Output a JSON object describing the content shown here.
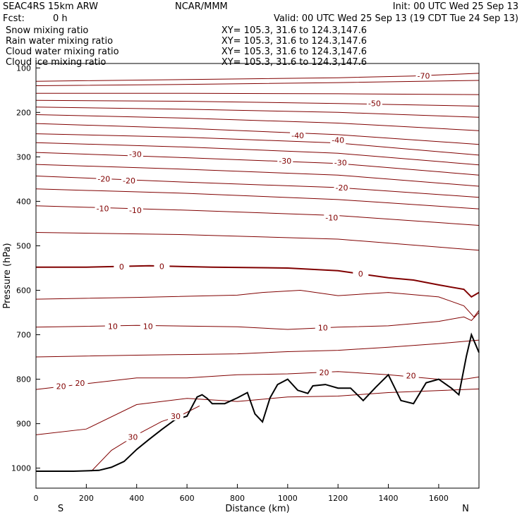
{
  "header": {
    "model": "SEAC4RS 15km ARW",
    "org": "NCAR/MMM",
    "init": "Init: 00 UTC Wed 25 Sep 13",
    "fcst_label": "Fcst:",
    "fcst_value": "0 h",
    "valid": "Valid: 00 UTC Wed 25 Sep 13 (19 CDT Tue 24 Sep 13)"
  },
  "fields": [
    {
      "name": "Snow mixing ratio",
      "xy": "XY= 105.3, 31.6 to 124.3,147.6",
      "color": "#000000"
    },
    {
      "name": "Rain water mixing ratio",
      "xy": "XY= 105.3, 31.6 to 124.3,147.6",
      "color": "#ff0000"
    },
    {
      "name": "Cloud water mixing ratio",
      "xy": "XY= 105.3, 31.6 to 124.3,147.6",
      "color": "#0000ff"
    },
    {
      "name": "Cloud ice mixing ratio",
      "xy": "XY= 105.3, 31.6 to 124.3,147.6",
      "color": "#000000"
    }
  ],
  "axes": {
    "ylabel": "Pressure (hPa)",
    "xlabel": "Distance (km)",
    "left_end": "S",
    "right_end": "N"
  },
  "colors": {
    "isotherm": "#800000",
    "terrain": "#000000"
  },
  "chart_data": {
    "type": "line",
    "xlim": [
      0,
      1760
    ],
    "ylim": [
      1045,
      90
    ],
    "x_ticks": [
      0,
      200,
      400,
      600,
      800,
      1000,
      1200,
      1400,
      1600
    ],
    "x_tick_labels": [
      "0",
      "200",
      "400",
      "600",
      "800",
      "1000",
      "1200",
      "1400",
      "1600"
    ],
    "y_ticks": [
      100,
      200,
      300,
      400,
      500,
      600,
      700,
      800,
      900,
      1000
    ],
    "y_tick_labels": [
      "100",
      "200",
      "300",
      "400",
      "500",
      "600",
      "700",
      "800",
      "900",
      "1000"
    ],
    "contour_interval_c": 5,
    "isotherms": [
      {
        "t": -75,
        "x": [
          0,
          600,
          1200,
          1500,
          1760
        ],
        "p": [
          130,
          126,
          122,
          118,
          112
        ]
      },
      {
        "t": -70,
        "x": [
          0,
          600,
          1200,
          1760
        ],
        "p": [
          140,
          137,
          133,
          128
        ]
      },
      {
        "t": -65,
        "x": [
          0,
          600,
          1200,
          1760
        ],
        "p": [
          157,
          157,
          158,
          160
        ]
      },
      {
        "t": -60,
        "x": [
          0,
          600,
          1200,
          1760
        ],
        "p": [
          173,
          175,
          180,
          186
        ]
      },
      {
        "t": -55,
        "x": [
          0,
          600,
          1200,
          1760
        ],
        "p": [
          188,
          193,
          200,
          211
        ]
      },
      {
        "t": -50,
        "x": [
          0,
          600,
          1200,
          1760
        ],
        "p": [
          205,
          213,
          224,
          241
        ]
      },
      {
        "t": -45,
        "x": [
          0,
          600,
          1200,
          1760
        ],
        "p": [
          225,
          236,
          250,
          272
        ]
      },
      {
        "t": -40,
        "x": [
          0,
          600,
          1200,
          1760
        ],
        "p": [
          248,
          256,
          269,
          296
        ]
      },
      {
        "t": -35,
        "x": [
          0,
          600,
          1200,
          1760
        ],
        "p": [
          268,
          278,
          292,
          318
        ]
      },
      {
        "t": -30,
        "x": [
          0,
          600,
          1200,
          1760
        ],
        "p": [
          290,
          302,
          315,
          341
        ]
      },
      {
        "t": -25,
        "x": [
          0,
          600,
          1200,
          1760
        ],
        "p": [
          317,
          328,
          341,
          366
        ]
      },
      {
        "t": -20,
        "x": [
          0,
          600,
          1200,
          1760
        ],
        "p": [
          343,
          357,
          369,
          391
        ]
      },
      {
        "t": -15,
        "x": [
          0,
          600,
          1200,
          1760
        ],
        "p": [
          372,
          382,
          396,
          417
        ]
      },
      {
        "t": -10,
        "x": [
          0,
          600,
          1200,
          1760
        ],
        "p": [
          410,
          420,
          432,
          454
        ]
      },
      {
        "t": -5,
        "x": [
          0,
          600,
          1200,
          1760
        ],
        "p": [
          470,
          475,
          485,
          510
        ]
      },
      {
        "t": 0,
        "x": [
          0,
          200,
          450,
          700,
          1000,
          1200,
          1400,
          1500,
          1600,
          1700,
          1730,
          1760
        ],
        "p": [
          548,
          548,
          545,
          548,
          550,
          556,
          572,
          577,
          588,
          598,
          615,
          605
        ]
      },
      {
        "t": 5,
        "x": [
          0,
          400,
          800,
          900,
          1050,
          1200,
          1400,
          1600,
          1700,
          1740,
          1760
        ],
        "p": [
          620,
          616,
          611,
          605,
          600,
          612,
          605,
          615,
          635,
          660,
          645
        ]
      },
      {
        "t": 10,
        "x": [
          0,
          400,
          800,
          1000,
          1200,
          1400,
          1600,
          1700,
          1730,
          1760
        ],
        "p": [
          683,
          679,
          682,
          688,
          683,
          680,
          670,
          660,
          668,
          650
        ]
      },
      {
        "t": 15,
        "x": [
          0,
          400,
          800,
          1000,
          1200,
          1400,
          1600,
          1760
        ],
        "p": [
          750,
          746,
          743,
          738,
          735,
          728,
          720,
          712
        ]
      },
      {
        "t": 20,
        "x": [
          0,
          200,
          400,
          600,
          800,
          1000,
          1200,
          1400,
          1600,
          1700,
          1760
        ],
        "p": [
          823,
          810,
          797,
          797,
          790,
          788,
          783,
          790,
          800,
          800,
          795
        ]
      },
      {
        "t": 25,
        "x": [
          0,
          200,
          400,
          600,
          800,
          1000,
          1200,
          1400,
          1760
        ],
        "p": [
          925,
          912,
          857,
          843,
          850,
          840,
          838,
          830,
          822
        ]
      },
      {
        "t": 30,
        "x": [
          220,
          300,
          400,
          500,
          580,
          650
        ],
        "p": [
          1007,
          960,
          925,
          895,
          880,
          860
        ]
      }
    ],
    "terrain": {
      "x": [
        0,
        150,
        250,
        300,
        350,
        400,
        450,
        500,
        550,
        600,
        640,
        660,
        680,
        700,
        750,
        800,
        840,
        870,
        900,
        930,
        960,
        1000,
        1040,
        1080,
        1100,
        1150,
        1200,
        1250,
        1300,
        1350,
        1400,
        1450,
        1500,
        1550,
        1600,
        1650,
        1680,
        1710,
        1730,
        1760
      ],
      "p": [
        1007,
        1007,
        1005,
        998,
        985,
        958,
        935,
        913,
        892,
        883,
        840,
        835,
        843,
        855,
        855,
        842,
        830,
        878,
        896,
        842,
        812,
        800,
        825,
        832,
        815,
        812,
        820,
        820,
        848,
        818,
        790,
        848,
        855,
        808,
        800,
        820,
        835,
        748,
        700,
        740
      ]
    },
    "labels": [
      {
        "text": "-70",
        "x": 1540,
        "p": 118
      },
      {
        "text": "-50",
        "x": 1345,
        "p": 180
      },
      {
        "text": "-40",
        "x": 1040,
        "p": 252
      },
      {
        "text": "-40",
        "x": 1200,
        "p": 262
      },
      {
        "text": "-30",
        "x": 395,
        "p": 294
      },
      {
        "text": "-30",
        "x": 990,
        "p": 309
      },
      {
        "text": "-30",
        "x": 1210,
        "p": 313
      },
      {
        "text": "-20",
        "x": 270,
        "p": 349
      },
      {
        "text": "-20",
        "x": 370,
        "p": 353
      },
      {
        "text": "-20",
        "x": 1215,
        "p": 369
      },
      {
        "text": "-10",
        "x": 265,
        "p": 416
      },
      {
        "text": "-10",
        "x": 395,
        "p": 420
      },
      {
        "text": "-10",
        "x": 1175,
        "p": 437
      },
      {
        "text": "0",
        "x": 340,
        "p": 547
      },
      {
        "text": "0",
        "x": 500,
        "p": 546
      },
      {
        "text": "0",
        "x": 1290,
        "p": 563
      },
      {
        "text": "10",
        "x": 305,
        "p": 681
      },
      {
        "text": "10",
        "x": 445,
        "p": 681
      },
      {
        "text": "10",
        "x": 1140,
        "p": 684
      },
      {
        "text": "20",
        "x": 100,
        "p": 816
      },
      {
        "text": "20",
        "x": 175,
        "p": 809
      },
      {
        "text": "20",
        "x": 1145,
        "p": 785
      },
      {
        "text": "20",
        "x": 1490,
        "p": 792
      },
      {
        "text": "30",
        "x": 385,
        "p": 930
      },
      {
        "text": "30",
        "x": 555,
        "p": 883
      }
    ]
  }
}
